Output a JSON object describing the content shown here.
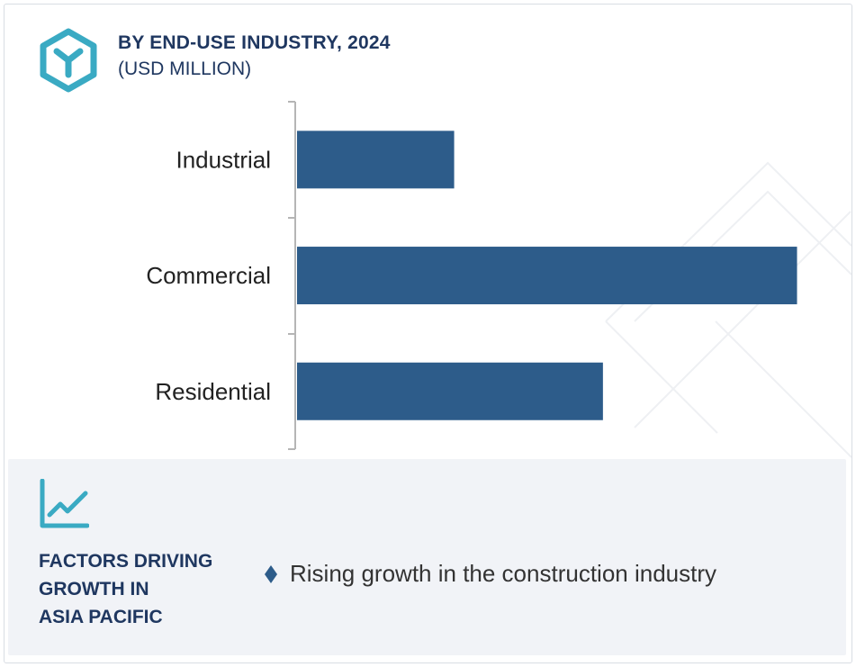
{
  "header": {
    "title": "BY END-USE INDUSTRY, 2024",
    "subtitle": "(USD MILLION)"
  },
  "colors": {
    "bar": "#2d5c8a",
    "title": "#1f3760",
    "accent": "#3aaac3",
    "panel": "#f1f3f7"
  },
  "icons": {
    "logo": "hexagon-y-logo-icon",
    "trend": "trend-chart-icon",
    "bullet": "diamond-bullet-icon"
  },
  "chart_data": {
    "type": "bar",
    "orientation": "horizontal",
    "categories": [
      "Industrial",
      "Commercial",
      "Residential"
    ],
    "values": [
      170,
      541,
      331
    ],
    "xlim": [
      0,
      560
    ],
    "title": "BY END-USE INDUSTRY, 2024",
    "subtitle": "(USD MILLION)",
    "grid": false,
    "legend": "none"
  },
  "footer": {
    "factors_title_lines": [
      "FACTORS DRIVING",
      "GROWTH IN",
      "ASIA PACIFIC"
    ],
    "factors": [
      "Rising growth in the construction industry"
    ]
  }
}
